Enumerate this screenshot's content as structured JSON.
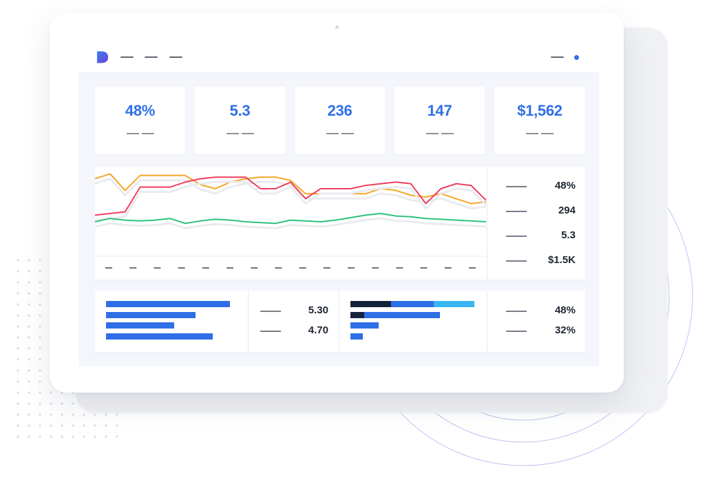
{
  "brand": {
    "accent": "#2f6fe6",
    "logo_gradient": [
      "#3f7df0",
      "#6a3fd8"
    ]
  },
  "topbar": {
    "logo_icon": "brand-logo-icon",
    "status_color": "#2f6fe6"
  },
  "kpis": [
    {
      "value": "48%"
    },
    {
      "value": "5.3"
    },
    {
      "value": "236"
    },
    {
      "value": "147"
    },
    {
      "value": "$1,562"
    }
  ],
  "trend_legend": [
    {
      "value": "48%"
    },
    {
      "value": "294"
    },
    {
      "value": "5.3"
    },
    {
      "value": "$1.5K"
    }
  ],
  "left_bar_stats": [
    {
      "value": "5.30"
    },
    {
      "value": "4.70"
    }
  ],
  "right_bar_stats": [
    {
      "value": "48%"
    },
    {
      "value": "32%"
    }
  ],
  "chart_data": [
    {
      "type": "line",
      "x": [
        0,
        1,
        2,
        3,
        4,
        5,
        6,
        7,
        8,
        9,
        10,
        11,
        12,
        13,
        14,
        15,
        16,
        17,
        18,
        19,
        20,
        21,
        22,
        23,
        24,
        25,
        26
      ],
      "series": [
        {
          "color": "#f5a623",
          "values": [
            92,
            98,
            78,
            96,
            96,
            96,
            96,
            85,
            80,
            88,
            92,
            94,
            94,
            90,
            74,
            74,
            74,
            74,
            74,
            80,
            78,
            72,
            70,
            74,
            68,
            62,
            64
          ]
        },
        {
          "color": "#ee3e5e",
          "values": [
            48,
            50,
            52,
            82,
            82,
            82,
            88,
            92,
            94,
            94,
            94,
            80,
            80,
            88,
            68,
            80,
            80,
            80,
            84,
            86,
            88,
            86,
            62,
            80,
            86,
            84,
            66
          ]
        },
        {
          "color": "#2ec27e",
          "values": [
            40,
            44,
            42,
            41,
            42,
            44,
            38,
            41,
            43,
            42,
            40,
            39,
            38,
            42,
            41,
            40,
            42,
            45,
            48,
            50,
            47,
            46,
            44,
            43,
            42,
            41,
            40
          ]
        }
      ],
      "ylim": [
        0,
        100
      ]
    },
    {
      "type": "bar",
      "orientation": "horizontal",
      "values": [
        100,
        72,
        55,
        86
      ],
      "color": "#2f6fe6",
      "xlim": [
        0,
        100
      ]
    },
    {
      "type": "bar",
      "orientation": "horizontal",
      "stacked": true,
      "series": [
        {
          "color": "#14233b",
          "values": [
            33,
            11,
            0,
            0
          ]
        },
        {
          "color": "#2f6fe6",
          "values": [
            34,
            61,
            23,
            10
          ]
        },
        {
          "color": "#37b6f2",
          "values": [
            33,
            0,
            0,
            0
          ]
        }
      ],
      "xlim": [
        0,
        100
      ]
    }
  ]
}
